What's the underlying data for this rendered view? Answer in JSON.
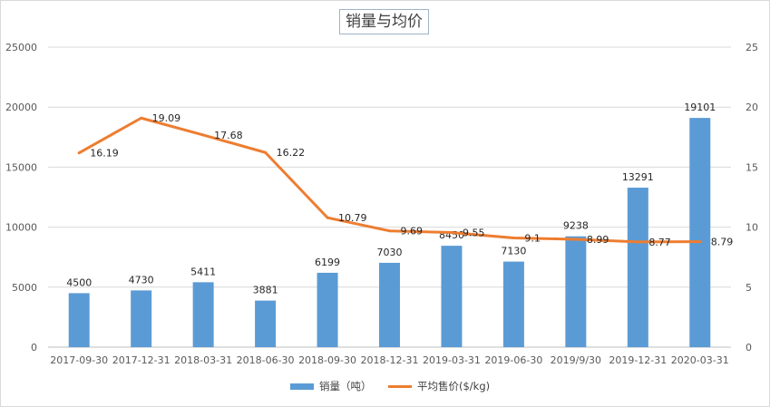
{
  "chart_data": {
    "type": "bar",
    "title": "销量与均价",
    "categories": [
      "2017-09-30",
      "2017-12-31",
      "2018-03-31",
      "2018-06-30",
      "2018-09-30",
      "2018-12-31",
      "2019-03-31",
      "2019-06-30",
      "2019/9/30",
      "2019-12-31",
      "2020-03-31"
    ],
    "series": [
      {
        "name": "销量（吨）",
        "type": "bar",
        "axis": "left",
        "color": "#5b9bd5",
        "values": [
          4500,
          4730,
          5411,
          3881,
          6199,
          7030,
          8450,
          7130,
          9238,
          13291,
          19101
        ],
        "labels": [
          "4500",
          "4730",
          "5411",
          "3881",
          "6199",
          "7030",
          "8450",
          "7130",
          "9238",
          "13291",
          "19101"
        ]
      },
      {
        "name": "平均售价($/kg)",
        "type": "line",
        "axis": "right",
        "color": "#ed7d31",
        "values": [
          16.19,
          19.09,
          17.68,
          16.22,
          10.79,
          9.69,
          9.55,
          9.1,
          8.99,
          8.77,
          8.79
        ],
        "labels": [
          "16.19",
          "19.09",
          "17.68",
          "16.22",
          "10.79",
          "9.69",
          "9.55",
          "9.1",
          "8.99",
          "8.77",
          "8.79"
        ]
      }
    ],
    "y_left": {
      "min": 0,
      "max": 25000,
      "ticks": [
        "0",
        "5000",
        "10000",
        "15000",
        "20000",
        "25000"
      ]
    },
    "y_right": {
      "min": 0,
      "max": 25,
      "ticks": [
        "0",
        "5",
        "10",
        "15",
        "20",
        "25"
      ]
    },
    "grid": true,
    "legend_position": "bottom"
  }
}
